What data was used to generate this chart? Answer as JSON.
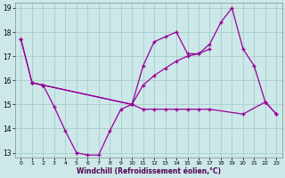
{
  "xlabel": "Windchill (Refroidissement éolien,°C)",
  "bg_color": "#cce8e8",
  "grid_color": "#aacccc",
  "line_color": "#990099",
  "xlim": [
    -0.5,
    23.5
  ],
  "ylim": [
    12.8,
    19.2
  ],
  "xticks": [
    0,
    1,
    2,
    3,
    4,
    5,
    6,
    7,
    8,
    9,
    10,
    11,
    12,
    13,
    14,
    15,
    16,
    17,
    18,
    19,
    20,
    21,
    22,
    23
  ],
  "yticks": [
    13,
    14,
    15,
    16,
    17,
    18,
    19
  ],
  "curve1_x": [
    0,
    1,
    2,
    10,
    11,
    12,
    13,
    14,
    15,
    16,
    17,
    18,
    19,
    20,
    21,
    22,
    23
  ],
  "curve1_y": [
    17.7,
    15.9,
    15.8,
    15.0,
    16.6,
    17.6,
    17.8,
    18.0,
    17.1,
    17.1,
    17.5,
    18.4,
    19.0,
    17.3,
    16.6,
    15.1,
    14.6
  ],
  "curve2_x": [
    0,
    1,
    2,
    10,
    11,
    12,
    13,
    14,
    15,
    16,
    17
  ],
  "curve2_y": [
    17.7,
    15.9,
    15.8,
    15.0,
    15.8,
    16.2,
    16.5,
    16.8,
    17.0,
    17.1,
    17.3
  ],
  "curve3_x": [
    1,
    2,
    3,
    4,
    5,
    6,
    7,
    8,
    9,
    10,
    11,
    12,
    13,
    14,
    15,
    16,
    17,
    20,
    22,
    23
  ],
  "curve3_y": [
    15.9,
    15.8,
    14.9,
    13.9,
    13.0,
    12.9,
    12.9,
    13.9,
    14.8,
    15.0,
    14.8,
    14.8,
    14.8,
    14.8,
    14.8,
    14.8,
    14.8,
    14.6,
    15.1,
    14.6
  ],
  "tick_fontsize": 5.5,
  "xlabel_fontsize": 5.5,
  "xlabel_color": "#550055",
  "marker_size": 2.5,
  "line_width": 0.9
}
